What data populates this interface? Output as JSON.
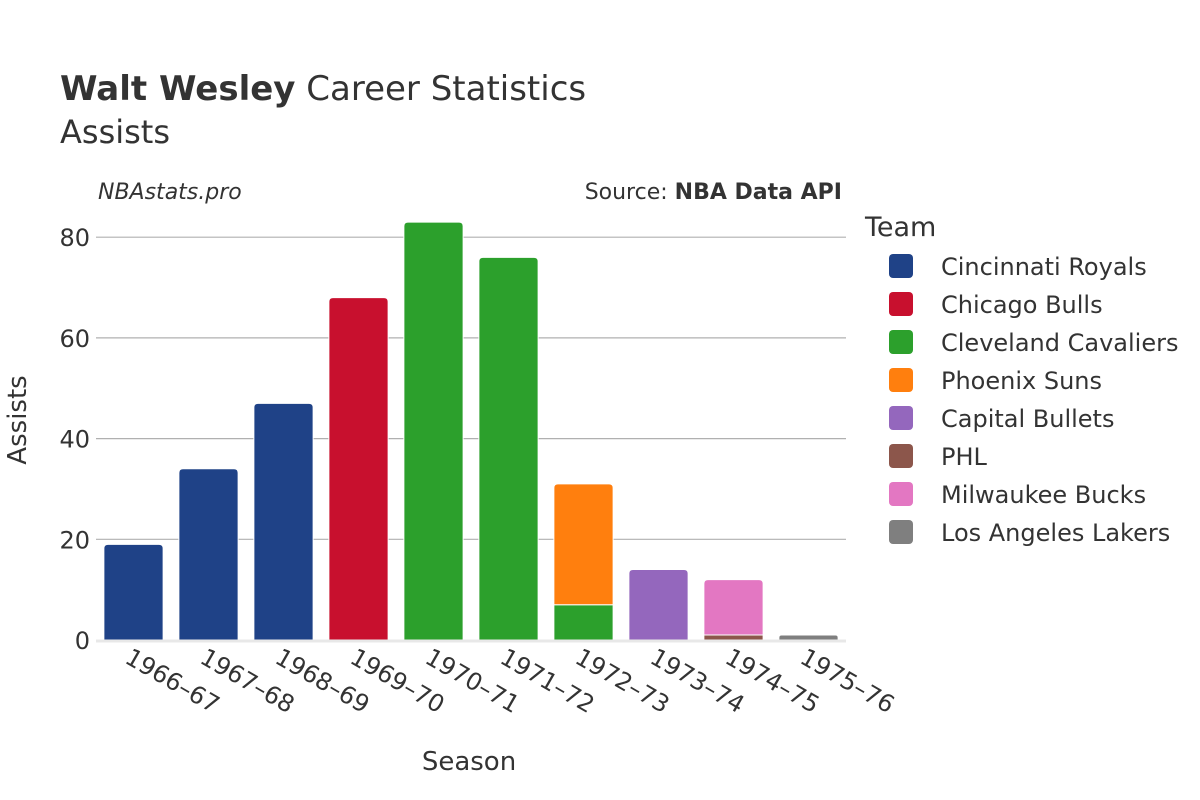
{
  "chart_data": {
    "type": "bar",
    "title_bold": "Walt Wesley",
    "title_rest": " Career Statistics",
    "subtitle": "Assists",
    "watermark": "NBAstats.pro",
    "source_prefix": "Source: ",
    "source_name": "NBA Data API",
    "xlabel": "Season",
    "ylabel": "Assists",
    "ylim": [
      0,
      85
    ],
    "yticks": [
      0,
      20,
      40,
      60,
      80
    ],
    "grid": true,
    "stacked": true,
    "legend_title": "Team",
    "legend_position": "right",
    "categories": [
      "1966–67",
      "1967–68",
      "1968–69",
      "1969–70",
      "1970–71",
      "1971–72",
      "1972–73",
      "1973–74",
      "1974–75",
      "1975–76"
    ],
    "series": [
      {
        "name": "Cincinnati Royals",
        "color": "#1f4287",
        "values": [
          19,
          34,
          47,
          0,
          0,
          0,
          0,
          0,
          0,
          0
        ]
      },
      {
        "name": "Chicago Bulls",
        "color": "#c8102e",
        "values": [
          0,
          0,
          0,
          68,
          0,
          0,
          0,
          0,
          0,
          0
        ]
      },
      {
        "name": "Cleveland Cavaliers",
        "color": "#2ca02c",
        "values": [
          0,
          0,
          0,
          0,
          83,
          76,
          7,
          0,
          0,
          0
        ]
      },
      {
        "name": "Phoenix Suns",
        "color": "#ff7f0e",
        "values": [
          0,
          0,
          0,
          0,
          0,
          0,
          24,
          0,
          0,
          0
        ]
      },
      {
        "name": "Capital Bullets",
        "color": "#9467bd",
        "values": [
          0,
          0,
          0,
          0,
          0,
          0,
          0,
          14,
          0,
          0
        ]
      },
      {
        "name": "PHL",
        "color": "#8c564b",
        "values": [
          0,
          0,
          0,
          0,
          0,
          0,
          0,
          0,
          1,
          0
        ]
      },
      {
        "name": "Milwaukee Bucks",
        "color": "#e377c2",
        "values": [
          0,
          0,
          0,
          0,
          0,
          0,
          0,
          0,
          11,
          0
        ]
      },
      {
        "name": "Los Angeles Lakers",
        "color": "#7f7f7f",
        "values": [
          0,
          0,
          0,
          0,
          0,
          0,
          0,
          0,
          0,
          1
        ]
      }
    ]
  }
}
